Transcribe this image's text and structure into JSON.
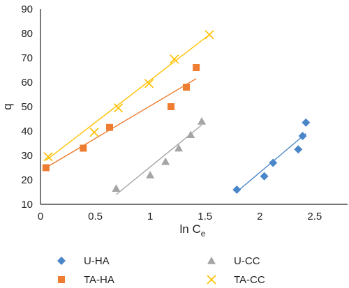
{
  "chart_data": {
    "type": "scatter",
    "xlabel": "ln C",
    "xlabel_subscript": "e",
    "ylabel": "q",
    "xlim": [
      0,
      2.8
    ],
    "ylim": [
      10,
      90
    ],
    "x_ticks": [
      "0",
      "0.5",
      "1",
      "1.5",
      "2",
      "2.5"
    ],
    "y_ticks": [
      "10",
      "20",
      "30",
      "40",
      "50",
      "60",
      "70",
      "80",
      "90"
    ],
    "grid": false,
    "legend_position": "bottom",
    "series": [
      {
        "name": "U-HA",
        "marker": "diamond",
        "color": "#4a86c8",
        "points": [
          [
            1.79,
            16
          ],
          [
            2.04,
            21.5
          ],
          [
            2.12,
            27
          ],
          [
            2.35,
            32.5
          ],
          [
            2.39,
            38
          ],
          [
            2.42,
            43.5
          ]
        ],
        "trendline": [
          [
            1.8,
            15.5
          ],
          [
            2.42,
            39
          ]
        ]
      },
      {
        "name": "TA-HA",
        "marker": "square",
        "color": "#ef7d31",
        "points": [
          [
            0.05,
            25
          ],
          [
            0.39,
            33
          ],
          [
            0.63,
            41.5
          ],
          [
            1.19,
            50
          ],
          [
            1.33,
            58
          ],
          [
            1.42,
            66
          ]
        ],
        "trendline": [
          [
            0.05,
            25
          ],
          [
            1.42,
            61.5
          ]
        ]
      },
      {
        "name": "U-CC",
        "marker": "triangle",
        "color": "#a5a5a5",
        "points": [
          [
            0.69,
            16.5
          ],
          [
            1.0,
            22
          ],
          [
            1.14,
            27.5
          ],
          [
            1.26,
            33
          ],
          [
            1.37,
            38.5
          ],
          [
            1.47,
            44
          ]
        ],
        "trendline": [
          [
            0.69,
            14
          ],
          [
            1.47,
            42.5
          ]
        ]
      },
      {
        "name": "TA-CC",
        "marker": "x",
        "color": "#ffc000",
        "points": [
          [
            0.07,
            29.5
          ],
          [
            0.49,
            39.5
          ],
          [
            0.71,
            49.5
          ],
          [
            0.99,
            59.5
          ],
          [
            1.22,
            69.5
          ],
          [
            1.54,
            79.5
          ]
        ],
        "trendline": [
          [
            0.05,
            28
          ],
          [
            1.54,
            79.5
          ]
        ]
      }
    ]
  }
}
